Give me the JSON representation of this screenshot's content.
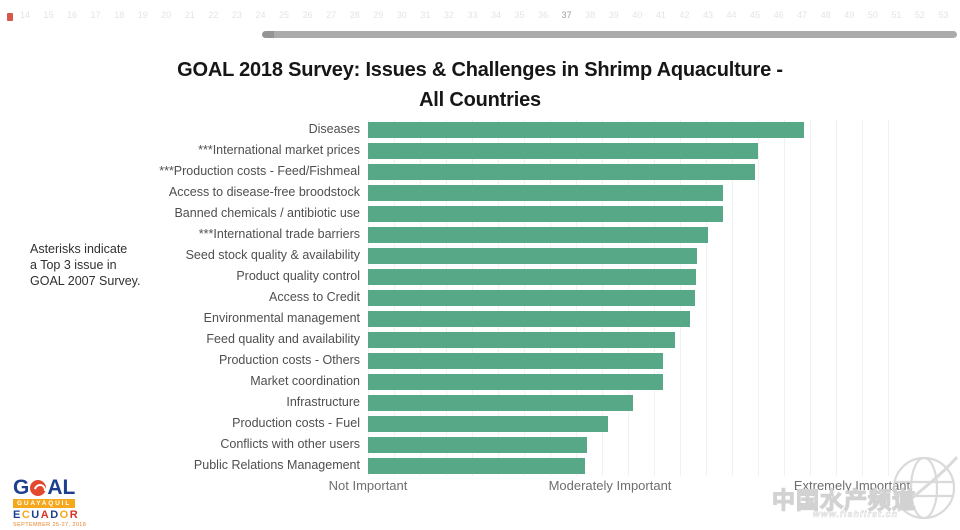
{
  "filmstrip": {
    "numbers": [
      "14",
      "15",
      "16",
      "17",
      "18",
      "19",
      "20",
      "21",
      "22",
      "23",
      "24",
      "25",
      "26",
      "27",
      "28",
      "29",
      "30",
      "31",
      "32",
      "33",
      "34",
      "35",
      "36",
      "37",
      "38",
      "39",
      "40",
      "41",
      "42",
      "43",
      "44",
      "45",
      "46",
      "47",
      "48",
      "49",
      "50",
      "51",
      "52",
      "53"
    ],
    "active": "37",
    "marker_color": "#cf3b2a"
  },
  "chart_data": {
    "type": "bar",
    "orientation": "horizontal",
    "title": "GOAL 2018 Survey: Issues & Challenges in Shrimp Aquaculture - All Countries",
    "title_lines": [
      "GOAL 2018 Survey: Issues & Challenges in Shrimp Aquaculture -",
      "All Countries"
    ],
    "categories": [
      "Diseases",
      "***International market prices",
      "***Production costs - Feed/Fishmeal",
      "Access to disease-free broodstock",
      "Banned chemicals / antibiotic use",
      "***International trade barriers",
      "Seed stock quality & availability",
      "Product quality control",
      "Access to Credit",
      "Environmental management",
      "Feed quality and availability",
      "Production costs - Others",
      "Market coordination",
      "Infrastructure",
      "Production costs - Fuel",
      "Conflicts with other users",
      "Public Relations Management"
    ],
    "values": [
      4.6,
      4.22,
      4.2,
      3.93,
      3.93,
      3.81,
      3.72,
      3.71,
      3.7,
      3.66,
      3.54,
      3.44,
      3.44,
      3.19,
      2.98,
      2.81,
      2.79
    ],
    "xaxis": {
      "min": 1,
      "max": 5.46,
      "ticks": [
        {
          "value": 1,
          "label": "Not Important"
        },
        {
          "value": 3,
          "label": "Moderately Important"
        },
        {
          "value": 5,
          "label": "Extremely Important"
        }
      ]
    },
    "bar_color": "#57a886",
    "grid": true,
    "legend": false,
    "annotation": "Asterisks indicate a Top 3 issue in GOAL 2007 Survey."
  },
  "note": {
    "lines": [
      "Asterisks indicate",
      "a Top 3 issue in",
      "GOAL 2007 Survey."
    ]
  },
  "logo": {
    "word_parts": [
      "G",
      "AL"
    ],
    "banner": "GUAYAQUIL",
    "country_letters": [
      {
        "ch": "E",
        "c": "#1c3f90"
      },
      {
        "ch": "C",
        "c": "#f5a81c"
      },
      {
        "ch": "U",
        "c": "#1c3f90"
      },
      {
        "ch": "A",
        "c": "#d63427"
      },
      {
        "ch": "D",
        "c": "#1c3f90"
      },
      {
        "ch": "O",
        "c": "#f5a81c"
      },
      {
        "ch": "R",
        "c": "#d63427"
      }
    ],
    "date": "SEPTEMBER 25-27, 2018"
  },
  "watermark": {
    "text": "中国水产频道",
    "url": "www.fishfirst.cn"
  }
}
